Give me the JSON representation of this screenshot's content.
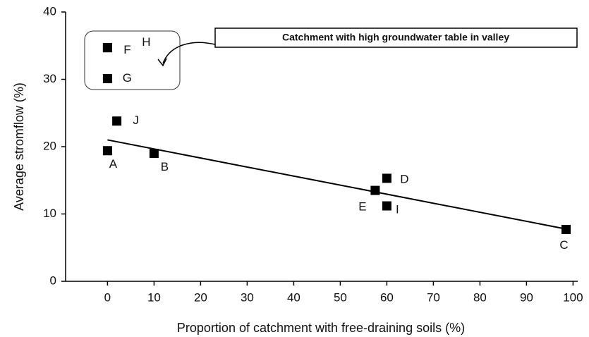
{
  "chart_data": {
    "type": "scatter",
    "x_label": "Proportion of catchment with free-draining soils (%)",
    "y_label": "Average stromflow (%)",
    "annotation": "Catchment with high groundwater table in valley",
    "xlim": [
      -9,
      101
    ],
    "xticks": [
      0,
      10,
      20,
      30,
      40,
      50,
      60,
      70,
      80,
      90,
      100
    ],
    "ylim": [
      0,
      40
    ],
    "yticks": [
      0,
      10,
      20,
      30,
      40
    ],
    "color": "#000000",
    "x": [
      0,
      0,
      0,
      2,
      0,
      10,
      60,
      57.5,
      60,
      98.5
    ],
    "values": [
      34.7,
      34.7,
      30.1,
      23.8,
      19.4,
      19,
      15.3,
      13.5,
      11.2,
      7.7
    ],
    "point_labels": [
      "F",
      "H",
      "G",
      "J",
      "A",
      "B",
      "D",
      "E",
      "I",
      "C"
    ],
    "trendline": {
      "x": [
        0,
        99
      ],
      "values": [
        21,
        7.7
      ]
    }
  }
}
